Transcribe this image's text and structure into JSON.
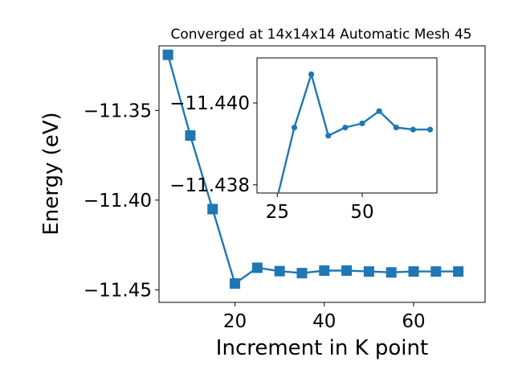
{
  "chart_data": [
    {
      "type": "line",
      "title": "Converged at 14x14x14 Automatic Mesh 45",
      "xlabel": "Increment in K point",
      "ylabel": "Energy (eV)",
      "xlim": [
        3,
        76
      ],
      "ylim": [
        -11.457,
        -11.314
      ],
      "xticks": [
        20,
        40,
        60
      ],
      "yticks": [
        -11.35,
        -11.4,
        -11.45
      ],
      "ytick_labels": [
        "−11.35",
        "−11.40",
        "−11.45"
      ],
      "marker": "square",
      "color": "#1f77b4",
      "grid": false,
      "series": [
        {
          "x": [
            5,
            10,
            15,
            20,
            25,
            30,
            35,
            40,
            45,
            50,
            55,
            60,
            65,
            70
          ],
          "y": [
            -11.319,
            -11.364,
            -11.405,
            -11.4465,
            -11.4377,
            -11.4396,
            -11.4407,
            -11.4393,
            -11.4393,
            -11.4398,
            -11.4403,
            -11.4398,
            -11.4398,
            -11.4398
          ]
        }
      ]
    },
    {
      "type": "line",
      "title": "",
      "xlabel": "",
      "ylabel": "",
      "xlim": [
        19,
        72
      ],
      "ylim": [
        -11.4378,
        -11.4411
      ],
      "xticks": [
        25,
        50
      ],
      "yticks": [
        -11.44,
        -11.438
      ],
      "ytick_labels": [
        "−11.440",
        "−11.438"
      ],
      "marker": "circle",
      "color": "#1f77b4",
      "grid": false,
      "series": [
        {
          "x": [
            25,
            30,
            35,
            40,
            45,
            50,
            55,
            60,
            65,
            70
          ],
          "y": [
            -11.4377,
            -11.4394,
            -11.4407,
            -11.4392,
            -11.4394,
            -11.4395,
            -11.4398,
            -11.4394,
            -11.43935,
            -11.43935
          ]
        }
      ]
    }
  ]
}
